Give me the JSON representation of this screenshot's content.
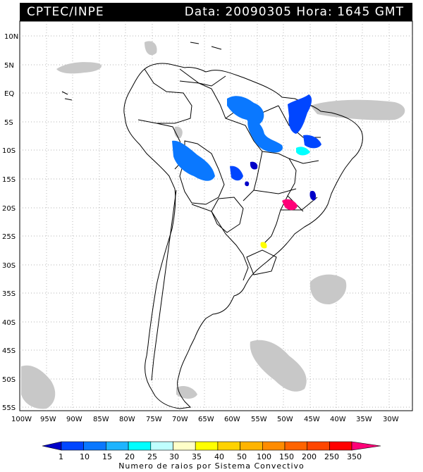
{
  "header": {
    "agency": "CPTEC/INPE",
    "timestamp": "Data: 20090305 Hora: 1645 GMT"
  },
  "map": {
    "lat_labels": [
      "10N",
      "5N",
      "EQ",
      "5S",
      "10S",
      "15S",
      "20S",
      "25S",
      "30S",
      "35S",
      "40S",
      "45S",
      "50S",
      "55S"
    ],
    "lon_labels": [
      "100W",
      "95W",
      "90W",
      "85W",
      "80W",
      "75W",
      "70W",
      "65W",
      "60W",
      "55W",
      "50W",
      "45W",
      "40W",
      "35W",
      "30W"
    ],
    "colors": {
      "ocean": "#ffffff",
      "border": "#000000",
      "cloud": "#c8c8c8",
      "grid": "#9a9a9a"
    }
  },
  "legend": {
    "title": "Numero de raios por Sistema Convectivo",
    "ticks": [
      "1",
      "10",
      "15",
      "20",
      "25",
      "30",
      "35",
      "40",
      "50",
      "100",
      "150",
      "200",
      "250",
      "350"
    ],
    "colors": [
      "#0000c8",
      "#0046ff",
      "#0a78ff",
      "#1eb4ff",
      "#00ffff",
      "#bfffff",
      "#ffffc8",
      "#ffff00",
      "#ffd200",
      "#ffb400",
      "#ff8c00",
      "#ff4600",
      "#ff0000",
      "#ff0078"
    ]
  }
}
